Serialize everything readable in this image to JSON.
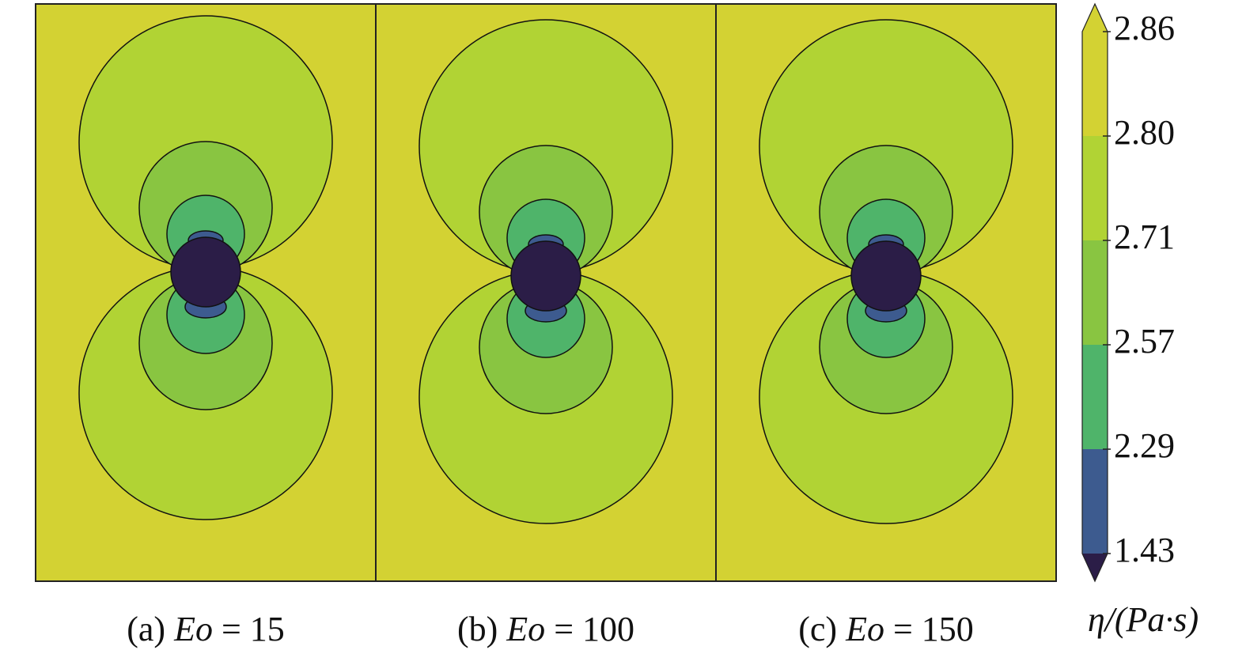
{
  "chart_data": {
    "type": "contour",
    "panels": [
      {
        "prefix": "(a)",
        "symbol": "Eo",
        "suffix": "= 15"
      },
      {
        "prefix": "(b)",
        "symbol": "Eo",
        "suffix": "= 100"
      },
      {
        "prefix": "(c)",
        "symbol": "Eo",
        "suffix": "= 150"
      }
    ],
    "colorbar": {
      "label": "η/(Pa·s)",
      "ticks": [
        1.43,
        2.29,
        2.57,
        2.71,
        {
          "value": 2.8,
          "label": "2.80"
        },
        2.86
      ],
      "colors": [
        "#2b1d47",
        "#3d5b8f",
        "#4fb46a",
        "#89c541",
        "#b1d334",
        "#d3d233",
        "#d3d233"
      ]
    }
  }
}
